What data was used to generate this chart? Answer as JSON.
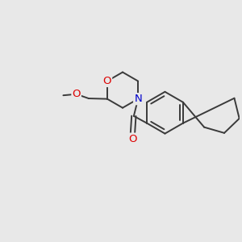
{
  "bg_color": "#e8e8e8",
  "bond_color": "#3a3a3a",
  "bond_width": 1.4,
  "atom_colors": {
    "O": "#dd0000",
    "N": "#0000cc",
    "C": "#3a3a3a"
  },
  "figsize": [
    3.0,
    3.0
  ],
  "dpi": 100,
  "xlim": [
    0,
    10
  ],
  "ylim": [
    0,
    10
  ]
}
